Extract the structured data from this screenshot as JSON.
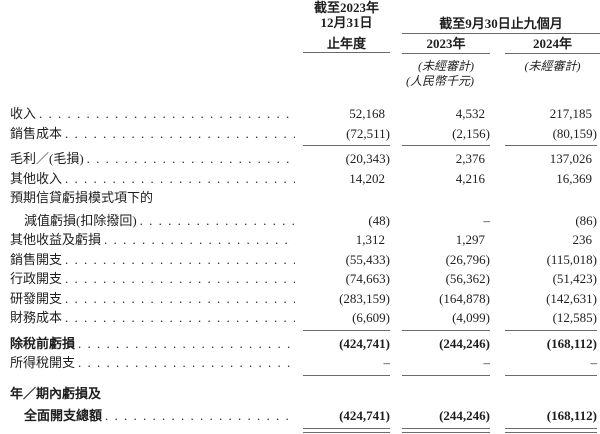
{
  "table": {
    "header": {
      "fy_col_lines": [
        "截至2023年",
        "12月31日",
        "止年度"
      ],
      "period_group": "截至9月30日止九個月",
      "col_2023": "2023年",
      "col_2024": "2024年",
      "unaudited_note": "(未經審計)",
      "currency_note": "(人民幣千元)"
    },
    "rows": [
      {
        "label": "收入",
        "dots": true,
        "values": [
          "52,168",
          "4,532",
          "217,185"
        ]
      },
      {
        "label": "銷售成本",
        "dots": true,
        "values": [
          "(72,511)",
          "(2,156)",
          "(80,159)"
        ],
        "rule_after": "single"
      },
      {
        "label": "毛利／(毛損)",
        "dots": true,
        "values": [
          "(20,343)",
          "2,376",
          "137,026"
        ]
      },
      {
        "label": "其他收入",
        "dots": true,
        "values": [
          "14,202",
          "4,216",
          "16,369"
        ]
      },
      {
        "label": "預期信貸虧損模式項下的",
        "dots": false,
        "values": null
      },
      {
        "label": "減值虧損(扣除撥回)",
        "indent": true,
        "dots": true,
        "values": [
          "(48)",
          "–",
          "(86)"
        ],
        "gap_before": 3
      },
      {
        "label": "其他收益及虧損",
        "dots": true,
        "values": [
          "1,312",
          "1,297",
          "236"
        ]
      },
      {
        "label": "銷售開支",
        "dots": true,
        "values": [
          "(55,433)",
          "(26,796)",
          "(115,018)"
        ]
      },
      {
        "label": "行政開支",
        "dots": true,
        "values": [
          "(74,663)",
          "(56,362)",
          "(51,423)"
        ]
      },
      {
        "label": "研發開支",
        "dots": true,
        "values": [
          "(283,159)",
          "(164,878)",
          "(142,631)"
        ]
      },
      {
        "label": "財務成本",
        "dots": true,
        "values": [
          "(6,609)",
          "(4,099)",
          "(12,585)"
        ],
        "rule_after": "single"
      },
      {
        "label": "除稅前虧損",
        "bold": true,
        "dots": true,
        "values": [
          "(424,741)",
          "(244,246)",
          "(168,112)"
        ]
      },
      {
        "label": "所得稅開支",
        "dots": true,
        "values": [
          "–",
          "–",
          "–"
        ],
        "rule_after": "single"
      },
      {
        "label": "年／期內虧損及",
        "bold": true,
        "dots": false,
        "values": null,
        "gap_before": 5
      },
      {
        "label": "全面開支總額",
        "bold": true,
        "indent": true,
        "dots": true,
        "values": [
          "(424,741)",
          "(244,246)",
          "(168,112)"
        ],
        "rule_after": "double",
        "gap_before": 3
      }
    ]
  }
}
